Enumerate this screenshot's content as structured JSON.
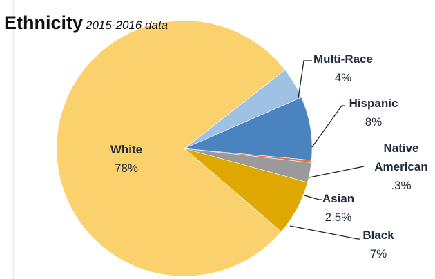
{
  "chart_data": {
    "type": "pie",
    "title": "Ethnicity",
    "subtitle": "2015-2016 data",
    "categories": [
      "White",
      "Multi-Race",
      "Hispanic",
      "Native American",
      "Asian",
      "Black"
    ],
    "values": [
      78,
      4,
      8,
      0.3,
      2.5,
      7
    ],
    "value_labels": [
      "78%",
      "4%",
      "8%",
      ".3%",
      "2.5%",
      "7%"
    ],
    "colors": [
      "#fad16c",
      "#9fc2e4",
      "#4a83bf",
      "#e8733a",
      "#9a9a9a",
      "#dfa800"
    ]
  }
}
